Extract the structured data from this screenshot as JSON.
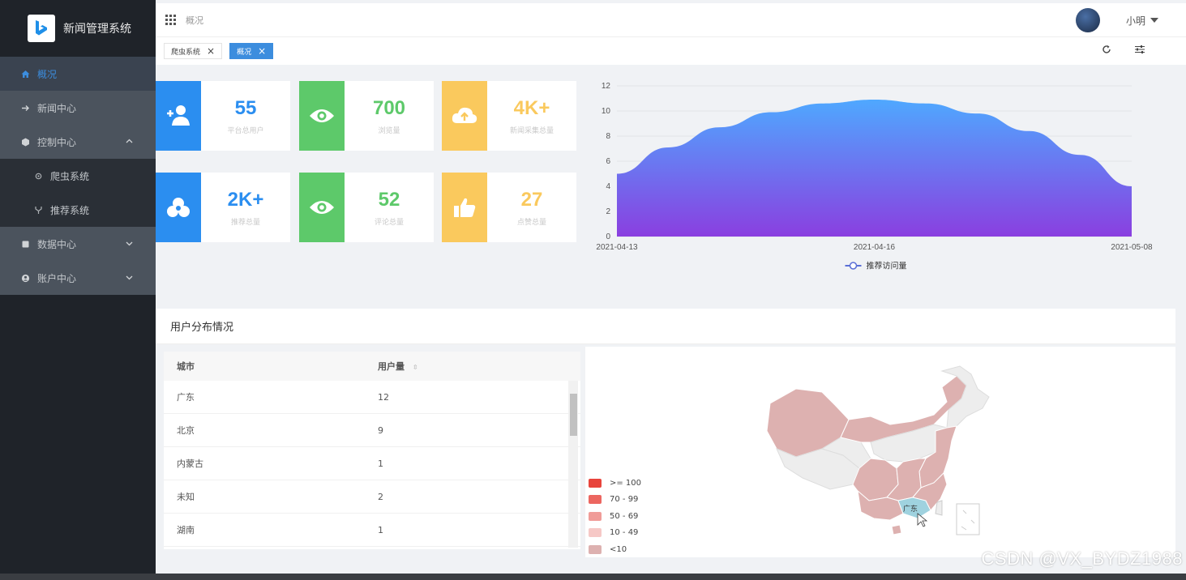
{
  "app": {
    "title": "新闻管理系统"
  },
  "sidebar": {
    "items": [
      {
        "label": "概况",
        "icon": "home-icon",
        "level": 0,
        "active": true
      },
      {
        "label": "新闻中心",
        "icon": "arrow-right-icon",
        "level": 1
      },
      {
        "label": "控制中心",
        "icon": "hexagon-icon",
        "level": 1,
        "expanded": true
      },
      {
        "label": "爬虫系统",
        "icon": "gear-icon",
        "level": 2
      },
      {
        "label": "推荐系统",
        "icon": "branch-icon",
        "level": 2
      },
      {
        "label": "数据中心",
        "icon": "square-icon",
        "level": 1
      },
      {
        "label": "账户中心",
        "icon": "user-circle-icon",
        "level": 1
      }
    ]
  },
  "topbar": {
    "breadcrumb": "概况",
    "username": "小明"
  },
  "tabs": [
    {
      "label": "爬虫系统",
      "active": false
    },
    {
      "label": "概况",
      "active": true
    }
  ],
  "stats": [
    {
      "value": "55",
      "label": "平台总用户",
      "color": "#2b8ef0",
      "icon": "user-plus-icon"
    },
    {
      "value": "700",
      "label": "浏览量",
      "color": "#5dc96a",
      "icon": "eye-icon"
    },
    {
      "value": "4K+",
      "label": "新闻采集总量",
      "color": "#fac95d",
      "icon": "cloud-upload-icon"
    },
    {
      "value": "2K+",
      "label": "推荐总量",
      "color": "#2b8ef0",
      "icon": "circles-icon"
    },
    {
      "value": "52",
      "label": "评论总量",
      "color": "#5dc96a",
      "icon": "eye-icon"
    },
    {
      "value": "27",
      "label": "点赞总量",
      "color": "#fac95d",
      "icon": "thumbs-up-icon"
    }
  ],
  "chart_data": {
    "type": "area",
    "x_ticks": [
      "2021-04-13",
      "2021-04-16",
      "2021-05-08"
    ],
    "y_ticks": [
      0,
      2,
      4,
      6,
      8,
      10,
      12
    ],
    "ylim": [
      0,
      12
    ],
    "series": [
      {
        "name": "推荐访问量",
        "points": [
          [
            0,
            5
          ],
          [
            0.1,
            7.1
          ],
          [
            0.2,
            8.7
          ],
          [
            0.3,
            9.9
          ],
          [
            0.4,
            10.6
          ],
          [
            0.5,
            10.9
          ],
          [
            0.6,
            10.6
          ],
          [
            0.7,
            9.8
          ],
          [
            0.8,
            8.4
          ],
          [
            0.9,
            6.5
          ],
          [
            1,
            4
          ]
        ]
      }
    ],
    "gradient": [
      "#4fa8ff",
      "#8a3fe0"
    ],
    "grid": true,
    "legend_position": "bottom-center"
  },
  "distribution": {
    "title": "用户分布情况",
    "columns": [
      "城市",
      "用户量"
    ],
    "rows": [
      [
        "广东",
        "12"
      ],
      [
        "北京",
        "9"
      ],
      [
        "内蒙古",
        "1"
      ],
      [
        "未知",
        "2"
      ],
      [
        "湖南",
        "1"
      ]
    ],
    "legend": [
      {
        "label": ">= 100",
        "color": "#e8443c"
      },
      {
        "label": "70 - 99",
        "color": "#ec6660"
      },
      {
        "label": "50 - 69",
        "color": "#f09c98"
      },
      {
        "label": "10 - 49",
        "color": "#f6c8c6"
      },
      {
        "label": "<10",
        "color": "#ddb1b0"
      }
    ],
    "map_label": "广东"
  },
  "watermark": "CSDN @VX_BYDZ1988"
}
